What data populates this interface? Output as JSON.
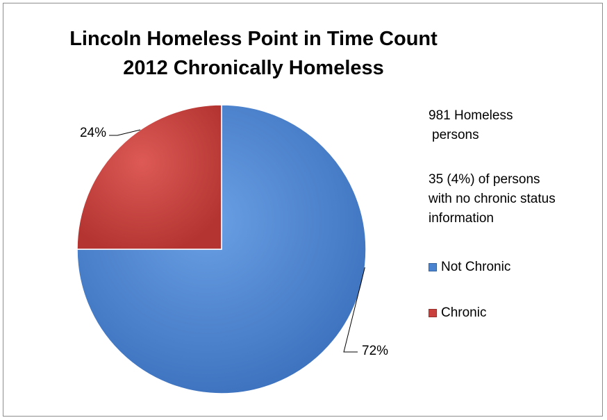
{
  "chart_data": {
    "type": "pie",
    "title": [
      "Lincoln Homeless Point in Time Count",
      "2012 Chronically Homeless"
    ],
    "slices": [
      {
        "name": "Not Chronic",
        "value": 72,
        "label": "72%",
        "color": "#4a84d0"
      },
      {
        "name": "Chronic",
        "value": 24,
        "label": "24%",
        "color": "#c9403d"
      }
    ],
    "legend": {
      "placement": "right",
      "items": [
        "Not Chronic",
        "Chronic"
      ]
    },
    "notes": [
      "981 Homeless",
      "persons",
      "35 (4%) of persons",
      "with no chronic status",
      "information"
    ]
  }
}
